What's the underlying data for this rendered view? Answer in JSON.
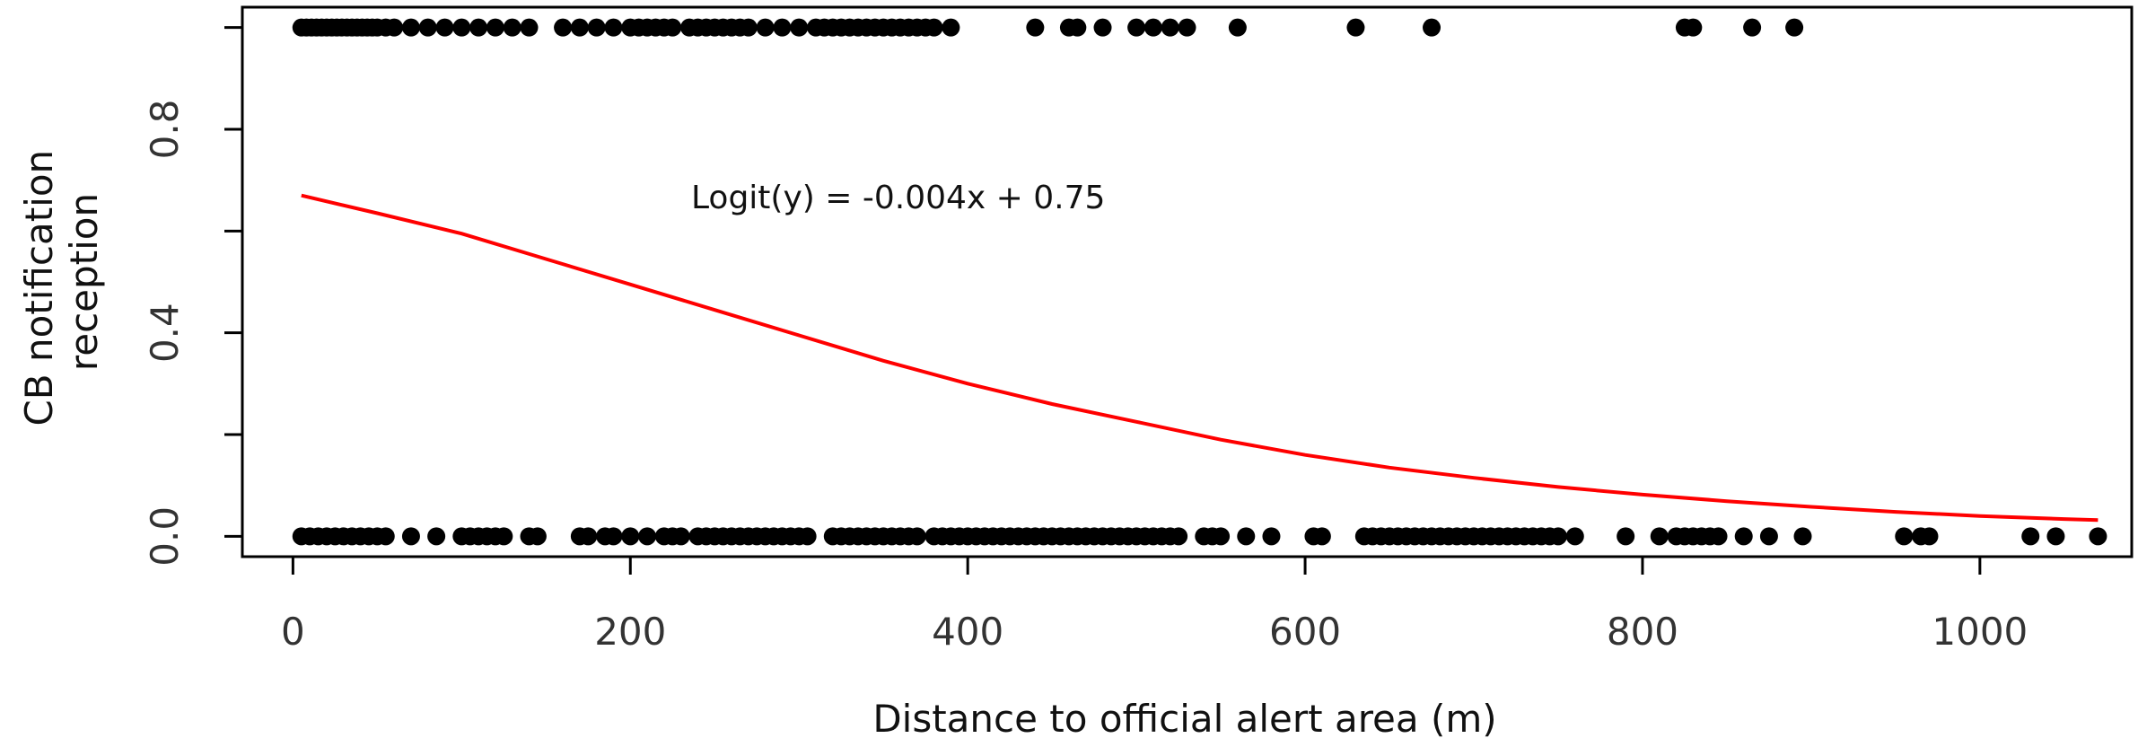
{
  "chart_data": {
    "type": "scatter",
    "xlabel": "Distance to official alert area (m)",
    "ylabel": "CB notification reception",
    "xlim": [
      -30,
      1090
    ],
    "ylim": [
      -0.04,
      1.04
    ],
    "xticks": [
      0,
      200,
      400,
      600,
      800,
      1000
    ],
    "xtick_labels": [
      "0",
      "200",
      "400",
      "600",
      "800",
      "1000"
    ],
    "yticks": [
      0.0,
      0.2,
      0.4,
      0.6,
      0.8,
      1.0
    ],
    "ytick_labels": [
      "0.0",
      "",
      "0.4",
      "",
      "0.8",
      ""
    ],
    "grid": false,
    "annotation": "Logit(y) = -0.004x + 0.75",
    "points_y1": [
      5,
      8,
      11,
      14,
      17,
      20,
      23,
      26,
      29,
      32,
      35,
      38,
      41,
      44,
      47,
      50,
      55,
      60,
      70,
      80,
      90,
      100,
      110,
      120,
      130,
      140,
      160,
      170,
      180,
      190,
      200,
      205,
      210,
      215,
      220,
      225,
      235,
      240,
      245,
      250,
      255,
      260,
      265,
      270,
      280,
      290,
      300,
      310,
      315,
      320,
      325,
      330,
      335,
      340,
      345,
      350,
      355,
      360,
      365,
      370,
      375,
      380,
      390,
      440,
      460,
      465,
      480,
      500,
      510,
      520,
      530,
      560,
      630,
      675,
      825,
      830,
      865,
      890
    ],
    "points_y0": [
      5,
      10,
      15,
      20,
      25,
      30,
      35,
      40,
      45,
      50,
      55,
      70,
      85,
      100,
      105,
      110,
      115,
      120,
      125,
      140,
      145,
      170,
      175,
      185,
      190,
      200,
      210,
      220,
      225,
      230,
      240,
      245,
      250,
      255,
      260,
      265,
      270,
      275,
      280,
      285,
      290,
      295,
      300,
      305,
      320,
      325,
      330,
      335,
      340,
      345,
      350,
      355,
      360,
      365,
      370,
      380,
      385,
      390,
      395,
      400,
      405,
      410,
      415,
      420,
      425,
      430,
      435,
      440,
      445,
      450,
      455,
      460,
      465,
      470,
      475,
      480,
      485,
      490,
      495,
      500,
      505,
      510,
      515,
      520,
      525,
      540,
      545,
      550,
      565,
      580,
      605,
      610,
      635,
      640,
      645,
      650,
      655,
      660,
      665,
      670,
      675,
      680,
      685,
      690,
      695,
      700,
      705,
      710,
      715,
      720,
      725,
      730,
      735,
      740,
      745,
      750,
      760,
      790,
      810,
      820,
      825,
      830,
      835,
      840,
      845,
      860,
      875,
      895,
      955,
      965,
      970,
      1030,
      1045,
      1070
    ],
    "curve": {
      "x": [
        5,
        50,
        100,
        150,
        200,
        250,
        300,
        350,
        400,
        450,
        500,
        550,
        600,
        650,
        700,
        750,
        800,
        850,
        900,
        950,
        1000,
        1050,
        1070
      ],
      "y": [
        0.67,
        0.635,
        0.595,
        0.545,
        0.495,
        0.445,
        0.395,
        0.345,
        0.3,
        0.26,
        0.225,
        0.19,
        0.16,
        0.135,
        0.115,
        0.097,
        0.082,
        0.069,
        0.058,
        0.048,
        0.04,
        0.034,
        0.032
      ]
    }
  }
}
